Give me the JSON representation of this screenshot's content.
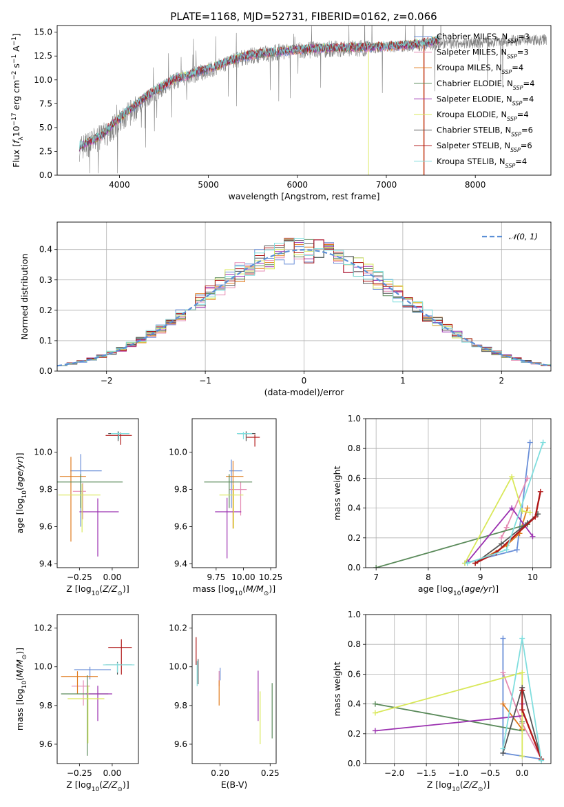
{
  "figure": {
    "title": "PLATE=1168, MJD=52731, FIBERID=0162, z=0.066"
  },
  "series_legend": [
    {
      "name": "Chabrier MILES, N_SSP=3",
      "base": "Chabrier MILES, N",
      "sub": "SSP",
      "rest": "=3",
      "color": "#6a8fd8"
    },
    {
      "name": "Salpeter MILES, N_SSP=3",
      "base": "Salpeter MILES, N",
      "sub": "SSP",
      "rest": "=3",
      "color": "#e58cb4"
    },
    {
      "name": "Kroupa MILES, N_SSP=4",
      "base": "Kroupa MILES, N",
      "sub": "SSP",
      "rest": "=4",
      "color": "#e07b1f"
    },
    {
      "name": "Chabrier ELODIE, N_SSP=4",
      "base": "Chabrier ELODIE, N",
      "sub": "SSP",
      "rest": "=4",
      "color": "#5a8a5a"
    },
    {
      "name": "Salpeter ELODIE, N_SSP=4",
      "base": "Salpeter ELODIE, N",
      "sub": "SSP",
      "rest": "=4",
      "color": "#9b30b0"
    },
    {
      "name": "Kroupa ELODIE, N_SSP=4",
      "base": "Kroupa ELODIE, N",
      "sub": "SSP",
      "rest": "=4",
      "color": "#d9e85a"
    },
    {
      "name": "Chabrier STELIB, N_SSP=6",
      "base": "Chabrier STELIB, N",
      "sub": "SSP",
      "rest": "=6",
      "color": "#555555"
    },
    {
      "name": "Salpeter STELIB, N_SSP=6",
      "base": "Salpeter STELIB, N",
      "sub": "SSP",
      "rest": "=6",
      "color": "#b01818"
    },
    {
      "name": "Kroupa STELIB, N_SSP=4",
      "base": "Kroupa STELIB, N",
      "sub": "SSP",
      "rest": "=4",
      "color": "#80dede"
    }
  ],
  "chart_data": [
    {
      "id": "spectrum",
      "type": "line",
      "xlabel": "wavelength [Angstrom, rest frame]",
      "ylabel": "Flux [f_λ 10^-17 erg cm^-2 s^-1 A^-1]",
      "xlim": [
        3300,
        8850
      ],
      "ylim": [
        0,
        15.7
      ],
      "xticks": [
        "4000",
        "5000",
        "6000",
        "7000",
        "8000"
      ],
      "yticks": [
        "0.0",
        "2.5",
        "5.0",
        "7.5",
        "10.0",
        "12.5",
        "15.0"
      ],
      "grid": false,
      "legend": "upper-right",
      "observed_continuum": {
        "x": [
          3550,
          3800,
          4000,
          4300,
          4600,
          5000,
          5400,
          5800,
          6200,
          6600,
          7000,
          7400,
          7800,
          8200,
          8600
        ],
        "y": [
          2.8,
          4.0,
          5.5,
          8.0,
          9.8,
          11.0,
          12.4,
          12.9,
          13.2,
          13.3,
          13.4,
          13.6,
          13.8,
          14.0,
          14.2
        ]
      },
      "model_continuum": {
        "x": [
          3550,
          3800,
          4000,
          4300,
          4600,
          5000,
          5400,
          5800,
          6200,
          6600,
          7000,
          7400,
          7600
        ],
        "y": [
          3.0,
          4.2,
          6.0,
          8.3,
          10.0,
          11.2,
          12.5,
          13.0,
          13.3,
          13.4,
          13.5,
          13.8,
          14.2
        ]
      }
    },
    {
      "id": "residual_hist",
      "type": "line",
      "xlabel": "(data-model)/error",
      "ylabel": "Normed distribution",
      "xlim": [
        -2.5,
        2.5
      ],
      "ylim": [
        0,
        0.49
      ],
      "xticks": [
        "−2",
        "−1",
        "0",
        "1",
        "2"
      ],
      "yticks": [
        "0.0",
        "0.1",
        "0.2",
        "0.3",
        "0.4"
      ],
      "grid": true,
      "legend": "upper-right",
      "reference_curve": {
        "name": "N(0,1)",
        "label": "𝒩(0, 1)",
        "mean": 0,
        "sigma": 1
      },
      "bin_width": 0.1
    },
    {
      "id": "age_vs_Z",
      "type": "scatter",
      "xlabel": "Z [log10(Z/Z⊙)]",
      "ylabel": "age [log10(age/yr)]",
      "xlim": [
        -0.42,
        0.2
      ],
      "ylim": [
        9.38,
        10.18
      ],
      "xticks": [
        "−0.25",
        "0.00"
      ],
      "yticks": [
        "9.4",
        "9.6",
        "9.8",
        "10.0"
      ],
      "grid": false,
      "points": [
        {
          "x": -0.2,
          "y": 9.9,
          "xerr": 0.12,
          "yerr": 0.03,
          "vx": 0.08,
          "vy": 0.3
        },
        {
          "x": -0.25,
          "y": 9.79,
          "xerr": 0.05,
          "yerr": 0.04,
          "vx": 0.05,
          "vy": 0.15
        },
        {
          "x": -0.3,
          "y": 9.87,
          "xerr": 0.1,
          "yerr": 0.03,
          "vx": 0.03,
          "vy": 0.35
        },
        {
          "x": -0.25,
          "y": 9.84,
          "xerr": 0.33,
          "yerr": 0.03,
          "vx": 0.02,
          "vy": 0.14
        },
        {
          "x": -0.1,
          "y": 9.68,
          "xerr": 0.15,
          "yerr": 0.03,
          "vx": 0.02,
          "vy": 0.24
        },
        {
          "x": -0.25,
          "y": 9.77,
          "xerr": 0.16,
          "yerr": 0.03,
          "vx": 0.04,
          "vy": 0.2
        },
        {
          "x": 0.05,
          "y": 10.1,
          "xerr": 0.08,
          "yerr": 0.02,
          "vx": 0.01,
          "vy": 0.04
        },
        {
          "x": 0.05,
          "y": 10.09,
          "xerr": 0.1,
          "yerr": 0.02,
          "vx": 0.03,
          "vy": 0.05
        },
        {
          "x": 0.06,
          "y": 10.1,
          "xerr": 0.07,
          "yerr": 0.02,
          "vx": 0.02,
          "vy": 0.03
        }
      ]
    },
    {
      "id": "age_vs_mass",
      "type": "scatter",
      "xlabel": "mass [log10(M/M⊙)]",
      "ylabel": "",
      "xlim": [
        9.53,
        10.3
      ],
      "ylim": [
        9.38,
        10.18
      ],
      "xticks": [
        "9.75",
        "10.00",
        "10.25"
      ],
      "yticks": [
        "9.4",
        "9.6",
        "9.8",
        "10.0"
      ],
      "grid": false,
      "points": [
        {
          "x": 9.93,
          "y": 9.9,
          "xerr": 0.06,
          "yerr": 0.03,
          "vx": 0.08,
          "vy": 0.2
        },
        {
          "x": 9.95,
          "y": 9.8,
          "xerr": 0.08,
          "yerr": 0.03,
          "vx": 0.05,
          "vy": 0.14
        },
        {
          "x": 9.92,
          "y": 9.87,
          "xerr": 0.08,
          "yerr": 0.03,
          "vx": 0.03,
          "vy": 0.28
        },
        {
          "x": 9.86,
          "y": 9.84,
          "xerr": 0.22,
          "yerr": 0.03,
          "vx": 0.02,
          "vy": 0.14
        },
        {
          "x": 9.86,
          "y": 9.68,
          "xerr": 0.12,
          "yerr": 0.03,
          "vx": 0.02,
          "vy": 0.25
        },
        {
          "x": 9.89,
          "y": 9.77,
          "xerr": 0.11,
          "yerr": 0.03,
          "vx": 0.04,
          "vy": 0.18
        },
        {
          "x": 10.03,
          "y": 10.1,
          "xerr": 0.08,
          "yerr": 0.02,
          "vx": 0.01,
          "vy": 0.04
        },
        {
          "x": 10.09,
          "y": 10.08,
          "xerr": 0.06,
          "yerr": 0.02,
          "vx": 0.03,
          "vy": 0.05
        },
        {
          "x": 10.01,
          "y": 10.1,
          "xerr": 0.07,
          "yerr": 0.02,
          "vx": 0.02,
          "vy": 0.03
        }
      ]
    },
    {
      "id": "mass_weight_vs_age",
      "type": "line",
      "xlabel": "age [log10(age/yr)]",
      "ylabel": "mass weight",
      "xlim": [
        6.8,
        10.35
      ],
      "ylim": [
        0,
        1
      ],
      "xticks": [
        "7",
        "8",
        "9",
        "10"
      ],
      "yticks": [
        "0.0",
        "0.2",
        "0.4",
        "0.6",
        "0.8",
        "1.0"
      ],
      "grid": true,
      "series": [
        {
          "x": [
            8.7,
            9.7,
            9.95
          ],
          "y": [
            0.03,
            0.12,
            0.84
          ]
        },
        {
          "x": [
            9.4,
            9.5,
            9.9
          ],
          "y": [
            0.2,
            0.27,
            0.6
          ]
        },
        {
          "x": [
            8.9,
            9.5,
            9.75,
            9.9
          ],
          "y": [
            0.03,
            0.15,
            0.23,
            0.4
          ]
        },
        {
          "x": [
            7.0,
            9.9,
            10.1
          ],
          "y": [
            0.0,
            0.29,
            0.36
          ]
        },
        {
          "x": [
            8.75,
            9.6,
            10.0
          ],
          "y": [
            0.04,
            0.4,
            0.21
          ]
        },
        {
          "x": [
            8.7,
            9.6,
            9.8,
            9.95
          ],
          "y": [
            0.03,
            0.61,
            0.38,
            0.37
          ]
        },
        {
          "x": [
            8.9,
            9.4,
            9.9,
            10.1
          ],
          "y": [
            0.03,
            0.16,
            0.3,
            0.36
          ]
        },
        {
          "x": [
            8.9,
            9.3,
            10.05,
            10.15
          ],
          "y": [
            0.03,
            0.1,
            0.34,
            0.51
          ]
        },
        {
          "x": [
            8.75,
            9.5,
            10.2
          ],
          "y": [
            0.03,
            0.12,
            0.84
          ]
        }
      ]
    },
    {
      "id": "mass_vs_Z",
      "type": "scatter",
      "xlabel": "Z [log10(Z/Z⊙)]",
      "ylabel": "mass [log10(M/M⊙)]",
      "xlim": [
        -0.42,
        0.2
      ],
      "ylim": [
        9.5,
        10.27
      ],
      "xticks": [
        "−0.25",
        "0.00"
      ],
      "yticks": [
        "9.6",
        "9.8",
        "10.0",
        "10.2"
      ],
      "grid": false,
      "points": [
        {
          "x": -0.15,
          "y": 9.985,
          "xerr": 0.14,
          "yerr": 0.02,
          "vx": 0.04,
          "vy": 0.05
        },
        {
          "x": -0.24,
          "y": 9.9,
          "xerr": 0.07,
          "yerr": 0.03,
          "vx": 0.04,
          "vy": 0.1
        },
        {
          "x": -0.25,
          "y": 9.95,
          "xerr": 0.14,
          "yerr": 0.03,
          "vx": 0.03,
          "vy": 0.09
        },
        {
          "x": -0.21,
          "y": 9.86,
          "xerr": 0.18,
          "yerr": 0.03,
          "vx": 0.04,
          "vy": 0.32
        },
        {
          "x": -0.1,
          "y": 9.86,
          "xerr": 0.1,
          "yerr": 0.03,
          "vx": 0.02,
          "vy": 0.14
        },
        {
          "x": -0.2,
          "y": 9.835,
          "xerr": 0.14,
          "yerr": 0.03,
          "vx": 0.03,
          "vy": 0.23
        },
        {
          "x": 0.05,
          "y": 10.01,
          "xerr": 0.1,
          "yerr": 0.02,
          "vx": 0.02,
          "vy": 0.05
        },
        {
          "x": 0.06,
          "y": 10.1,
          "xerr": 0.09,
          "yerr": 0.02,
          "vx": 0.02,
          "vy": 0.14
        },
        {
          "x": 0.05,
          "y": 10.01,
          "xerr": 0.12,
          "yerr": 0.02,
          "vx": 0.02,
          "vy": 0.04
        }
      ]
    },
    {
      "id": "mass_vs_ebv",
      "type": "scatter",
      "xlabel": "E(B-V)",
      "ylabel": "",
      "xlim": [
        0.172,
        0.256
      ],
      "ylim": [
        9.5,
        10.27
      ],
      "xticks": [
        "0.20",
        "0.25"
      ],
      "yticks": [
        "9.6",
        "9.8",
        "10.0",
        "10.2"
      ],
      "grid": false,
      "points": [
        {
          "x": 0.2,
          "y": 9.98,
          "vy": 0.05
        },
        {
          "x": 0.199,
          "y": 9.96,
          "vy": 0.06
        },
        {
          "x": 0.199,
          "y": 9.9,
          "vy": 0.1
        },
        {
          "x": 0.252,
          "y": 9.85,
          "vy": 0.22
        },
        {
          "x": 0.238,
          "y": 9.92,
          "vy": 0.2
        },
        {
          "x": 0.24,
          "y": 9.81,
          "vy": 0.21
        },
        {
          "x": 0.178,
          "y": 10.01,
          "vy": 0.1
        },
        {
          "x": 0.176,
          "y": 10.12,
          "vy": 0.11
        },
        {
          "x": 0.177,
          "y": 10.0,
          "vy": 0.1
        }
      ]
    },
    {
      "id": "mass_weight_vs_Z",
      "type": "line",
      "xlabel": "Z [log10(Z/Z⊙)]",
      "ylabel": "mass weight",
      "xlim": [
        -2.45,
        0.45
      ],
      "ylim": [
        0,
        1
      ],
      "xticks": [
        "−2.0",
        "−1.5",
        "−1.0",
        "−0.5",
        "0.0"
      ],
      "yticks": [
        "0.0",
        "0.2",
        "0.4",
        "0.6",
        "0.8",
        "1.0"
      ],
      "grid": true,
      "series": [
        {
          "x": [
            -0.3,
            -0.3,
            0.3
          ],
          "y": [
            0.84,
            0.07,
            0.03
          ]
        },
        {
          "x": [
            -0.3,
            0.0,
            0.3
          ],
          "y": [
            0.61,
            0.27,
            0.03
          ]
        },
        {
          "x": [
            -0.3,
            0.0,
            0.0,
            0.3
          ],
          "y": [
            0.4,
            0.23,
            0.36,
            0.03
          ]
        },
        {
          "x": [
            -2.3,
            0.0,
            0.0
          ],
          "y": [
            0.4,
            0.22,
            0.28
          ]
        },
        {
          "x": [
            -2.3,
            0.0,
            0.0
          ],
          "y": [
            0.22,
            0.32,
            0.4
          ]
        },
        {
          "x": [
            -2.3,
            0.0,
            0.0
          ],
          "y": [
            0.34,
            0.61,
            0.05
          ]
        },
        {
          "x": [
            -0.3,
            0.0,
            0.3
          ],
          "y": [
            0.07,
            0.51,
            0.03
          ]
        },
        {
          "x": [
            0.0,
            0.0,
            0.3
          ],
          "y": [
            0.49,
            0.36,
            0.03
          ]
        },
        {
          "x": [
            -0.3,
            0.0,
            0.3
          ],
          "y": [
            0.1,
            0.84,
            0.02
          ]
        }
      ]
    }
  ]
}
